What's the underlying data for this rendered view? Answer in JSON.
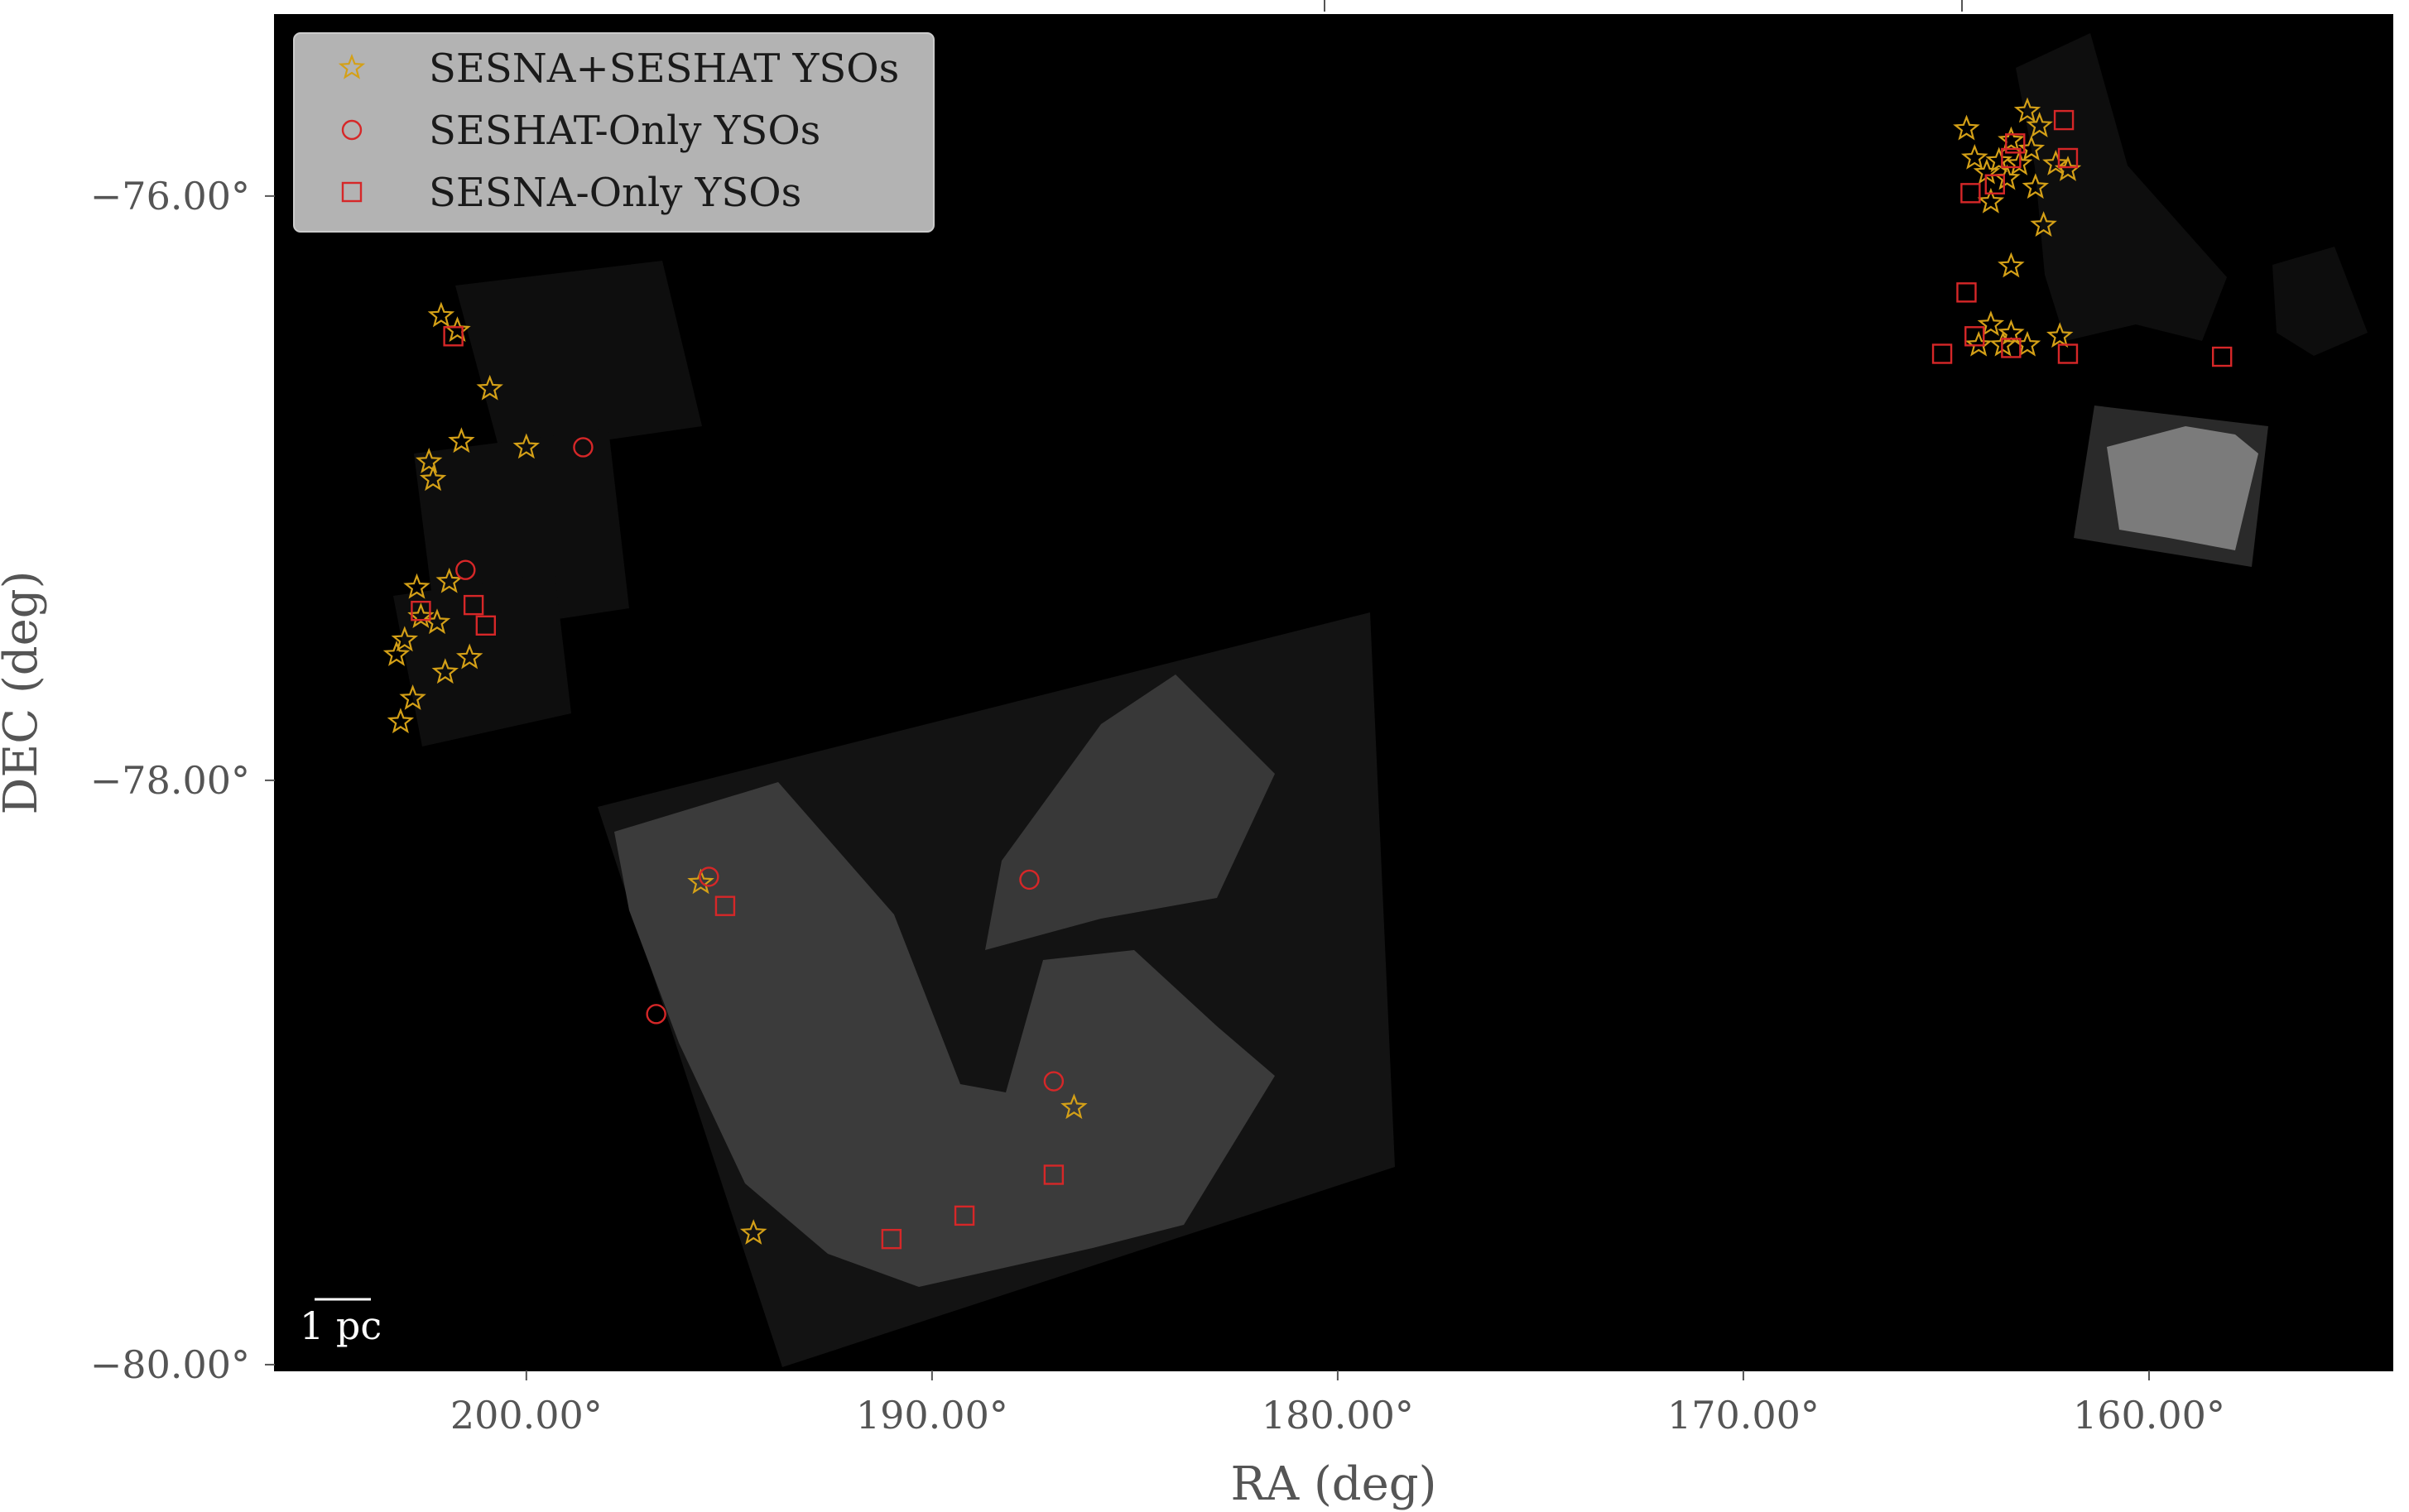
{
  "chart_data": {
    "type": "scatter",
    "title": "",
    "xlabel": "RA (deg)",
    "ylabel": "DEC (deg)",
    "x_axis_inverted": true,
    "xlim": [
      206.2,
      154.0
    ],
    "ylim": [
      -80.02,
      -75.38
    ],
    "x_ticks": [
      {
        "value": 200,
        "label": "200.00°"
      },
      {
        "value": 190,
        "label": "190.00°"
      },
      {
        "value": 180,
        "label": "180.00°"
      },
      {
        "value": 170,
        "label": "170.00°"
      },
      {
        "value": 160,
        "label": "160.00°"
      }
    ],
    "y_ticks": [
      {
        "value": -76,
        "label": "−76.00°"
      },
      {
        "value": -78,
        "label": "−78.00°"
      },
      {
        "value": -80,
        "label": "−80.00°"
      }
    ],
    "background_image": "grayscale infrared mosaic of survey coverage on black sky",
    "legend_position": "upper left",
    "scale_bar_label": "1 pc",
    "series": [
      {
        "name": "SESNA+SESHAT YSOs",
        "marker": "star",
        "color": "#d4a017",
        "points": [
          [
            202.1,
            -76.41
          ],
          [
            201.7,
            -76.46
          ],
          [
            200.9,
            -76.66
          ],
          [
            201.6,
            -76.84
          ],
          [
            200.0,
            -76.86
          ],
          [
            202.4,
            -76.91
          ],
          [
            202.3,
            -76.97
          ],
          [
            202.7,
            -77.34
          ],
          [
            201.9,
            -77.32
          ],
          [
            202.6,
            -77.44
          ],
          [
            202.2,
            -77.46
          ],
          [
            203.0,
            -77.52
          ],
          [
            203.2,
            -77.57
          ],
          [
            201.4,
            -77.58
          ],
          [
            202.0,
            -77.63
          ],
          [
            202.8,
            -77.72
          ],
          [
            203.1,
            -77.8
          ],
          [
            195.7,
            -78.35
          ],
          [
            194.4,
            -79.55
          ],
          [
            186.5,
            -79.12
          ],
          [
            163.0,
            -75.71
          ],
          [
            162.7,
            -75.76
          ],
          [
            164.5,
            -75.77
          ],
          [
            163.4,
            -75.81
          ],
          [
            162.9,
            -75.84
          ],
          [
            164.3,
            -75.87
          ],
          [
            163.7,
            -75.88
          ],
          [
            163.2,
            -75.89
          ],
          [
            162.3,
            -75.89
          ],
          [
            162.0,
            -75.91
          ],
          [
            164.0,
            -75.92
          ],
          [
            163.5,
            -75.94
          ],
          [
            162.8,
            -75.97
          ],
          [
            163.9,
            -76.02
          ],
          [
            162.6,
            -76.1
          ],
          [
            163.4,
            -76.24
          ],
          [
            163.9,
            -76.44
          ],
          [
            163.4,
            -76.47
          ],
          [
            164.2,
            -76.51
          ],
          [
            163.6,
            -76.51
          ],
          [
            163.0,
            -76.51
          ],
          [
            162.2,
            -76.48
          ]
        ]
      },
      {
        "name": "SESHAT-Only YSOs",
        "marker": "circle",
        "color": "#d62728",
        "points": [
          [
            198.6,
            -76.86
          ],
          [
            201.5,
            -77.28
          ],
          [
            195.5,
            -78.33
          ],
          [
            196.8,
            -78.8
          ],
          [
            187.6,
            -78.34
          ],
          [
            187.0,
            -79.03
          ]
        ]
      },
      {
        "name": "SESNA-Only YSOs",
        "marker": "square",
        "color": "#d62728",
        "points": [
          [
            201.8,
            -76.48
          ],
          [
            202.6,
            -77.42
          ],
          [
            201.3,
            -77.4
          ],
          [
            201.0,
            -77.47
          ],
          [
            195.1,
            -78.43
          ],
          [
            191.0,
            -79.57
          ],
          [
            189.2,
            -79.49
          ],
          [
            187.0,
            -79.35
          ],
          [
            162.1,
            -75.74
          ],
          [
            163.3,
            -75.82
          ],
          [
            163.4,
            -75.87
          ],
          [
            162.0,
            -75.87
          ],
          [
            164.4,
            -75.99
          ],
          [
            163.8,
            -75.96
          ],
          [
            164.5,
            -76.33
          ],
          [
            164.3,
            -76.48
          ],
          [
            165.1,
            -76.54
          ],
          [
            163.4,
            -76.52
          ],
          [
            162.0,
            -76.54
          ],
          [
            158.2,
            -76.55
          ]
        ]
      }
    ]
  }
}
